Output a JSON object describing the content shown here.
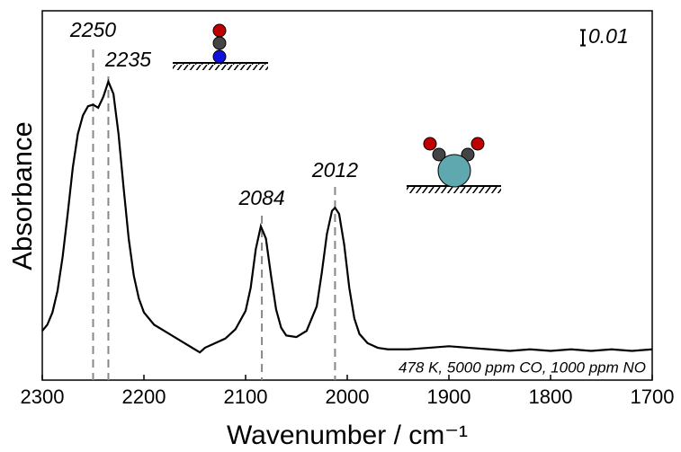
{
  "chart_data": {
    "type": "line",
    "xlabel": "Wavenumber / cm⁻¹",
    "ylabel": "Absorbance",
    "x": [
      2300,
      2295,
      2290,
      2285,
      2280,
      2275,
      2270,
      2265,
      2260,
      2255,
      2250,
      2245,
      2240,
      2235,
      2230,
      2225,
      2220,
      2215,
      2210,
      2205,
      2200,
      2190,
      2180,
      2170,
      2160,
      2150,
      2145,
      2140,
      2130,
      2120,
      2110,
      2100,
      2095,
      2090,
      2085,
      2080,
      2075,
      2070,
      2065,
      2060,
      2050,
      2040,
      2030,
      2025,
      2020,
      2015,
      2012,
      2008,
      2003,
      1998,
      1993,
      1988,
      1980,
      1970,
      1960,
      1940,
      1920,
      1900,
      1880,
      1860,
      1840,
      1820,
      1800,
      1780,
      1760,
      1740,
      1720,
      1700
    ],
    "values": [
      0.032,
      0.036,
      0.044,
      0.058,
      0.08,
      0.108,
      0.138,
      0.16,
      0.172,
      0.178,
      0.179,
      0.177,
      0.184,
      0.194,
      0.186,
      0.16,
      0.125,
      0.092,
      0.068,
      0.053,
      0.044,
      0.036,
      0.032,
      0.028,
      0.024,
      0.02,
      0.018,
      0.021,
      0.024,
      0.027,
      0.033,
      0.045,
      0.06,
      0.085,
      0.1,
      0.092,
      0.068,
      0.046,
      0.034,
      0.029,
      0.028,
      0.032,
      0.048,
      0.07,
      0.095,
      0.11,
      0.112,
      0.108,
      0.088,
      0.06,
      0.04,
      0.03,
      0.024,
      0.021,
      0.02,
      0.02,
      0.021,
      0.022,
      0.021,
      0.02,
      0.019,
      0.02,
      0.019,
      0.02,
      0.019,
      0.02,
      0.019,
      0.02
    ],
    "color": "#000000",
    "xlim": [
      2300,
      1700
    ],
    "xticks": [
      2300,
      2200,
      2100,
      2000,
      1900,
      1800,
      1700
    ],
    "ylim": [
      0,
      0.24
    ],
    "peaks": [
      {
        "text": "2250",
        "x": 2250
      },
      {
        "text": "2235",
        "x": 2235
      },
      {
        "text": "2084",
        "x": 2084
      },
      {
        "text": "2012",
        "x": 2012
      }
    ],
    "scale_bar": {
      "value": 0.01,
      "label": "0.01"
    },
    "note": "478 K, 5000 ppm CO, 1000 ppm NO"
  }
}
